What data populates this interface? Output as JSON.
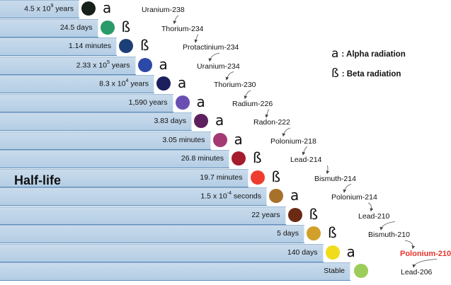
{
  "title": "Half-life",
  "legend": [
    {
      "symbol": "a",
      "label": ": Alpha radiation"
    },
    {
      "symbol": "ß",
      "label": ": Beta radiation"
    }
  ],
  "chain": [
    {
      "halflife": "4.5 x 10",
      "exp": "9",
      "unit": " years",
      "radiation": "a",
      "nuclide": "Uranium-238",
      "color": "#16211a"
    },
    {
      "halflife": "24.5 days",
      "exp": "",
      "unit": "",
      "radiation": "ß",
      "nuclide": "Thorium-234",
      "color": "#2a9a6a"
    },
    {
      "halflife": "1.14 minutes",
      "exp": "",
      "unit": "",
      "radiation": "ß",
      "nuclide": "Protactinium-234",
      "color": "#1d3f78"
    },
    {
      "halflife": "2.33 x 10",
      "exp": "5",
      "unit": " years",
      "radiation": "a",
      "nuclide": "Uranium-234",
      "color": "#2c49a8"
    },
    {
      "halflife": "8.3 x 10",
      "exp": "4",
      "unit": " years",
      "radiation": "a",
      "nuclide": "Thorium-230",
      "color": "#1b1f5e"
    },
    {
      "halflife": "1,590 years",
      "exp": "",
      "unit": "",
      "radiation": "a",
      "nuclide": "Radium-226",
      "color": "#6a4fb3"
    },
    {
      "halflife": "3.83 days",
      "exp": "",
      "unit": "",
      "radiation": "a",
      "nuclide": "Radon-222",
      "color": "#5e1f5f"
    },
    {
      "halflife": "3.05 minutes",
      "exp": "",
      "unit": "",
      "radiation": "a",
      "nuclide": "Polonium-218",
      "color": "#a33a74"
    },
    {
      "halflife": "26.8 minutes",
      "exp": "",
      "unit": "",
      "radiation": "ß",
      "nuclide": "Lead-214",
      "color": "#a51c2c"
    },
    {
      "halflife": "19.7 minutes",
      "exp": "",
      "unit": "",
      "radiation": "ß",
      "nuclide": "Bismuth-214",
      "color": "#ee3d2e"
    },
    {
      "halflife": "1.5 x 10",
      "exp": "-4",
      "unit": " seconds",
      "radiation": "a",
      "nuclide": "Polonium-214",
      "color": "#a8712a"
    },
    {
      "halflife": "22 years",
      "exp": "",
      "unit": "",
      "radiation": "ß",
      "nuclide": "Lead-210",
      "color": "#6b2a14"
    },
    {
      "halflife": "5 days",
      "exp": "",
      "unit": "",
      "radiation": "ß",
      "nuclide": "Bismuth-210",
      "color": "#d1a02a"
    },
    {
      "halflife": "140 days",
      "exp": "",
      "unit": "",
      "radiation": "a",
      "nuclide": "Polonium-210",
      "color": "#f0dc1a",
      "highlight": "#e8322b"
    },
    {
      "halflife": "Stable",
      "exp": "",
      "unit": "",
      "radiation": "",
      "nuclide": "Lead-206",
      "color": "#9ccc5a"
    }
  ]
}
